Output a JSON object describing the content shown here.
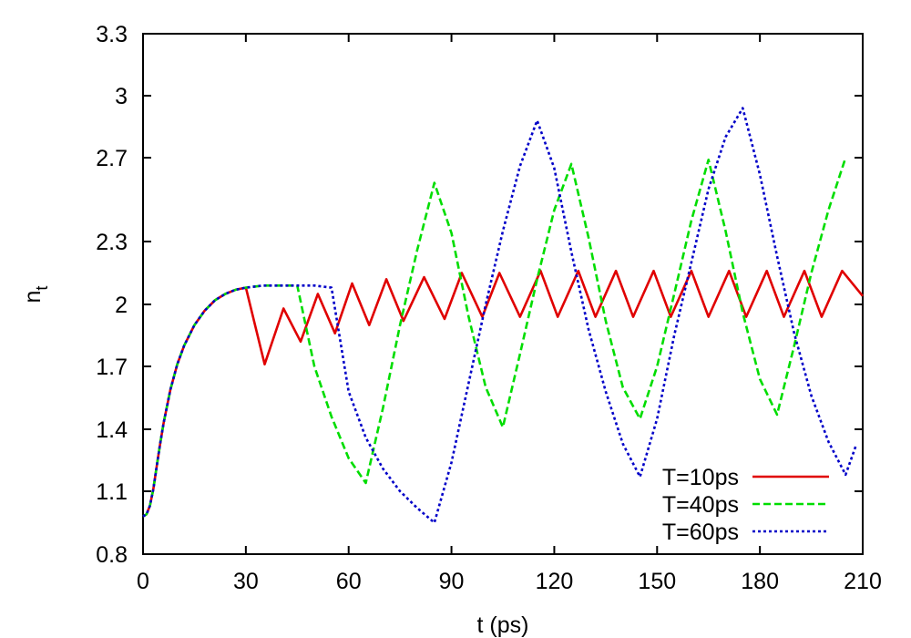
{
  "chart_data": {
    "type": "line",
    "title": "",
    "xlabel": "t (ps)",
    "ylabel_main": "n",
    "ylabel_sub": "t",
    "xlim": [
      0,
      210
    ],
    "ylim": [
      0.8,
      3.3
    ],
    "xticks": [
      0,
      30,
      60,
      90,
      120,
      150,
      180,
      210
    ],
    "xtick_labels": [
      "0",
      "30",
      "60",
      "90",
      "120",
      "150",
      "180",
      "210"
    ],
    "yticks": [
      0.8,
      1.1,
      1.4,
      1.7,
      2.0,
      2.3,
      2.7,
      3.0,
      3.3
    ],
    "ytick_labels": [
      "0.8",
      "1.1",
      "1.4",
      "1.7",
      "2",
      "2.3",
      "2.7",
      "3",
      "3.3"
    ],
    "grid": false,
    "legend_position": "bottom-right",
    "series": [
      {
        "name": "T=10ps",
        "color": "#e00000",
        "dash": "solid",
        "points": [
          [
            0,
            0.98
          ],
          [
            1,
            0.99
          ],
          [
            2,
            1.03
          ],
          [
            3,
            1.11
          ],
          [
            4,
            1.22
          ],
          [
            5,
            1.33
          ],
          [
            6,
            1.43
          ],
          [
            8,
            1.59
          ],
          [
            10,
            1.71
          ],
          [
            12,
            1.8
          ],
          [
            15,
            1.9
          ],
          [
            18,
            1.97
          ],
          [
            21,
            2.02
          ],
          [
            24,
            2.05
          ],
          [
            27,
            2.07
          ],
          [
            30,
            2.08
          ],
          [
            35.5,
            1.71
          ],
          [
            41,
            1.98
          ],
          [
            46,
            1.82
          ],
          [
            51,
            2.05
          ],
          [
            56,
            1.86
          ],
          [
            61,
            2.1
          ],
          [
            66,
            1.9
          ],
          [
            71,
            2.12
          ],
          [
            76,
            1.92
          ],
          [
            82,
            2.13
          ],
          [
            88,
            1.93
          ],
          [
            93,
            2.15
          ],
          [
            99,
            1.94
          ],
          [
            104,
            2.15
          ],
          [
            110,
            1.94
          ],
          [
            116,
            2.16
          ],
          [
            121,
            1.94
          ],
          [
            127,
            2.16
          ],
          [
            132,
            1.94
          ],
          [
            138,
            2.16
          ],
          [
            143,
            1.94
          ],
          [
            149,
            2.16
          ],
          [
            154,
            1.94
          ],
          [
            160,
            2.16
          ],
          [
            165,
            1.94
          ],
          [
            171,
            2.16
          ],
          [
            176,
            1.94
          ],
          [
            182,
            2.16
          ],
          [
            187,
            1.94
          ],
          [
            193,
            2.16
          ],
          [
            198,
            1.94
          ],
          [
            204,
            2.16
          ],
          [
            210,
            2.04
          ]
        ]
      },
      {
        "name": "T=40ps",
        "color": "#00dd00",
        "dash": "8,4",
        "points": [
          [
            0,
            0.98
          ],
          [
            1,
            0.99
          ],
          [
            2,
            1.03
          ],
          [
            3,
            1.11
          ],
          [
            4,
            1.22
          ],
          [
            5,
            1.33
          ],
          [
            6,
            1.43
          ],
          [
            8,
            1.59
          ],
          [
            10,
            1.71
          ],
          [
            12,
            1.8
          ],
          [
            15,
            1.9
          ],
          [
            18,
            1.97
          ],
          [
            21,
            2.02
          ],
          [
            24,
            2.05
          ],
          [
            27,
            2.07
          ],
          [
            30,
            2.08
          ],
          [
            35,
            2.09
          ],
          [
            40,
            2.09
          ],
          [
            45,
            2.09
          ],
          [
            50,
            1.7
          ],
          [
            55,
            1.46
          ],
          [
            60,
            1.26
          ],
          [
            65,
            1.14
          ],
          [
            70,
            1.5
          ],
          [
            75,
            1.9
          ],
          [
            80,
            2.26
          ],
          [
            85,
            2.58
          ],
          [
            90,
            2.34
          ],
          [
            95,
            1.94
          ],
          [
            100,
            1.6
          ],
          [
            105,
            1.41
          ],
          [
            110,
            1.76
          ],
          [
            115,
            2.12
          ],
          [
            120,
            2.45
          ],
          [
            125,
            2.67
          ],
          [
            130,
            2.32
          ],
          [
            135,
            1.92
          ],
          [
            140,
            1.6
          ],
          [
            145,
            1.45
          ],
          [
            150,
            1.7
          ],
          [
            155,
            2.05
          ],
          [
            160,
            2.4
          ],
          [
            165,
            2.69
          ],
          [
            170,
            2.35
          ],
          [
            175,
            1.96
          ],
          [
            180,
            1.64
          ],
          [
            185,
            1.47
          ],
          [
            190,
            1.8
          ],
          [
            195,
            2.15
          ],
          [
            200,
            2.45
          ],
          [
            205,
            2.7
          ]
        ]
      },
      {
        "name": "T=60ps",
        "color": "#0000c8",
        "dash": "3,3",
        "points": [
          [
            0,
            0.98
          ],
          [
            1,
            0.99
          ],
          [
            2,
            1.03
          ],
          [
            3,
            1.11
          ],
          [
            4,
            1.22
          ],
          [
            5,
            1.33
          ],
          [
            6,
            1.43
          ],
          [
            8,
            1.59
          ],
          [
            10,
            1.71
          ],
          [
            12,
            1.8
          ],
          [
            15,
            1.9
          ],
          [
            18,
            1.97
          ],
          [
            21,
            2.02
          ],
          [
            24,
            2.05
          ],
          [
            27,
            2.07
          ],
          [
            30,
            2.08
          ],
          [
            35,
            2.09
          ],
          [
            40,
            2.09
          ],
          [
            45,
            2.09
          ],
          [
            50,
            2.09
          ],
          [
            55,
            2.08
          ],
          [
            60,
            1.58
          ],
          [
            65,
            1.36
          ],
          [
            70,
            1.21
          ],
          [
            75,
            1.1
          ],
          [
            80,
            1.02
          ],
          [
            85,
            0.95
          ],
          [
            90,
            1.24
          ],
          [
            95,
            1.62
          ],
          [
            100,
            2.0
          ],
          [
            105,
            2.35
          ],
          [
            110,
            2.66
          ],
          [
            115,
            2.88
          ],
          [
            120,
            2.65
          ],
          [
            125,
            2.25
          ],
          [
            130,
            1.88
          ],
          [
            135,
            1.58
          ],
          [
            140,
            1.33
          ],
          [
            145,
            1.17
          ],
          [
            150,
            1.45
          ],
          [
            155,
            1.85
          ],
          [
            160,
            2.2
          ],
          [
            165,
            2.55
          ],
          [
            170,
            2.8
          ],
          [
            175,
            2.94
          ],
          [
            180,
            2.62
          ],
          [
            185,
            2.23
          ],
          [
            190,
            1.86
          ],
          [
            195,
            1.56
          ],
          [
            200,
            1.34
          ],
          [
            205,
            1.18
          ],
          [
            208,
            1.32
          ]
        ]
      }
    ]
  }
}
